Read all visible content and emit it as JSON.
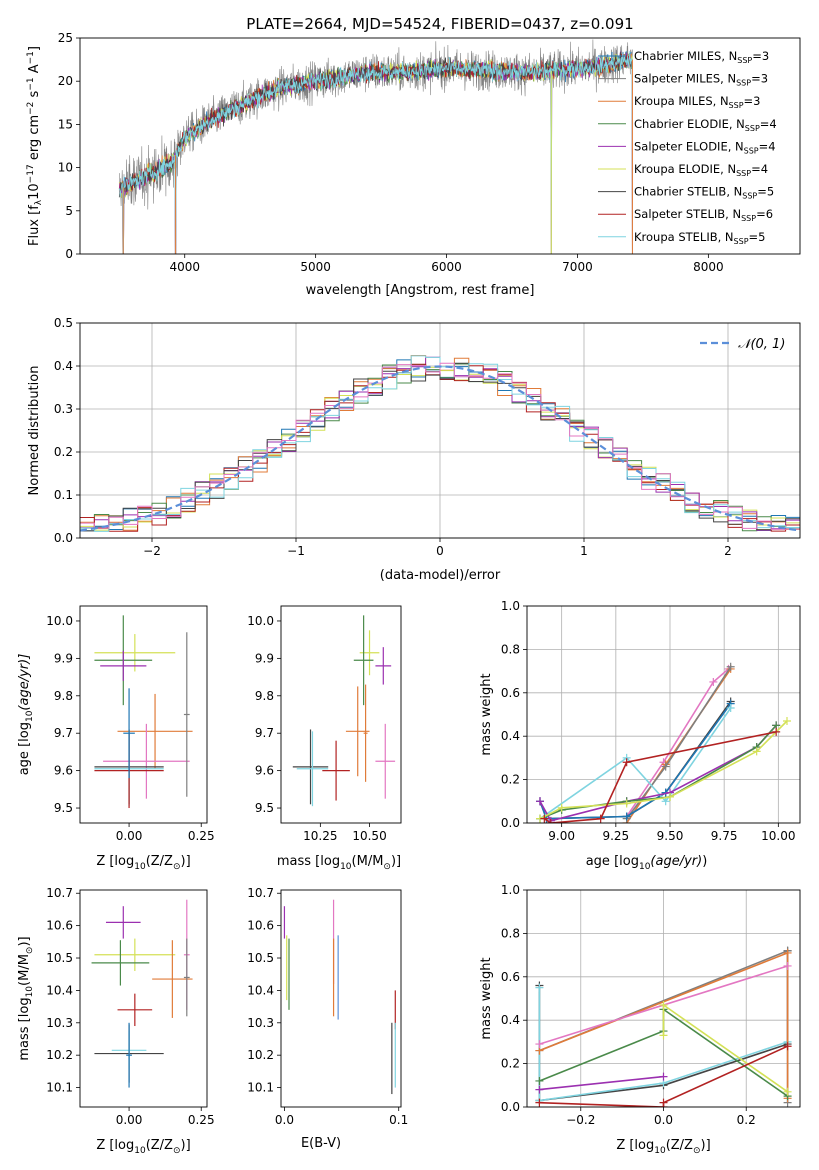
{
  "figure": {
    "title": "PLATE=2664, MJD=54524, FIBERID=0437, z=0.091"
  },
  "colors": {
    "Chabrier MILES": "#1f77b4",
    "Salpeter MILES": "#7f7f7f",
    "Kroupa MILES": "#e07b39",
    "Chabrier ELODIE": "#4a8a4a",
    "Salpeter ELODIE": "#9b30b0",
    "Kroupa ELODIE": "#d4e157",
    "Chabrier STELIB": "#444444",
    "Salpeter STELIB": "#b22222",
    "Kroupa STELIB": "#7fd4e0",
    "extra": "#e377c2",
    "gauss": "#5b8fd9"
  },
  "legend_spectrum": [
    {
      "model": "Chabrier MILES",
      "nssp": "3",
      "label": "Chabrier MILES, N"
    },
    {
      "model": "Salpeter MILES",
      "nssp": "3",
      "label": "Salpeter MILES, N"
    },
    {
      "model": "Kroupa MILES",
      "nssp": "3",
      "label": "Kroupa MILES, N"
    },
    {
      "model": "Chabrier ELODIE",
      "nssp": "4",
      "label": "Chabrier ELODIE, N"
    },
    {
      "model": "Salpeter ELODIE",
      "nssp": "4",
      "label": "Salpeter ELODIE, N"
    },
    {
      "model": "Kroupa ELODIE",
      "nssp": "4",
      "label": "Kroupa ELODIE, N"
    },
    {
      "model": "Chabrier STELIB",
      "nssp": "5",
      "label": "Chabrier STELIB, N"
    },
    {
      "model": "Salpeter STELIB",
      "nssp": "6",
      "label": "Salpeter STELIB, N"
    },
    {
      "model": "Kroupa STELIB",
      "nssp": "5",
      "label": "Kroupa STELIB, N"
    }
  ],
  "legend_subscript": "SSP",
  "chart_data": [
    {
      "id": "spectrum",
      "type": "line",
      "title": "PLATE=2664, MJD=54524, FIBERID=0437, z=0.091",
      "xlabel": "wavelength [Angstrom, rest frame]",
      "ylabel": "Flux [f",
      "xlim": [
        3200,
        8700
      ],
      "ylim": [
        0,
        25
      ],
      "xticks": [
        4000,
        5000,
        6000,
        7000,
        8000
      ],
      "yticks": [
        0,
        5,
        10,
        15,
        20,
        25
      ],
      "grid": false,
      "legend": "right",
      "data_envelope": {
        "x": [
          3500,
          3700,
          3900,
          4000,
          4200,
          4400,
          4600,
          4800,
          5000,
          5200,
          5400,
          5600,
          5800,
          6000,
          6200,
          6400,
          6600,
          6800,
          7000,
          7200,
          7400
        ],
        "y": [
          7.5,
          9.0,
          10.5,
          13.5,
          15.5,
          17.0,
          18.5,
          19.5,
          20.0,
          20.5,
          21.0,
          21.0,
          21.2,
          21.5,
          21.3,
          21.2,
          21.0,
          21.2,
          21.5,
          21.8,
          22.5
        ]
      },
      "dips": [
        3530,
        3930,
        6800,
        7420
      ]
    },
    {
      "id": "residuals",
      "type": "histogram",
      "xlabel": "(data-model)/error",
      "ylabel": "Normed distribution",
      "xlim": [
        -2.5,
        2.5
      ],
      "ylim": [
        0,
        0.5
      ],
      "xticks": [
        -2,
        -1,
        0,
        1,
        2
      ],
      "yticks": [
        0,
        0.1,
        0.2,
        0.3,
        0.4,
        0.5
      ],
      "grid": true,
      "legend": "top-right",
      "gauss_label": "𝒩(0, 1)",
      "bin_width": 0.1
    },
    {
      "id": "age_vs_Z",
      "type": "errorbar",
      "xlabel": "Z [log",
      "ylabel": "age  [log",
      "xlim": [
        -0.17,
        0.27
      ],
      "ylim": [
        9.46,
        10.04
      ],
      "xticks": [
        0.0,
        0.25
      ],
      "yticks": [
        9.5,
        9.6,
        9.7,
        9.8,
        9.9,
        10.0
      ],
      "points": [
        {
          "c": "Kroupa ELODIE",
          "x": 0.02,
          "y": 9.915,
          "xe": 0.14,
          "ye": 0.05
        },
        {
          "c": "Chabrier ELODIE",
          "x": -0.02,
          "y": 9.895,
          "xe": 0.1,
          "ye": 0.12
        },
        {
          "c": "Salpeter ELODIE",
          "x": -0.02,
          "y": 9.88,
          "xe": 0.08,
          "ye": 0.04
        },
        {
          "c": "Kroupa MILES",
          "x": 0.09,
          "y": 9.705,
          "xe": 0.13,
          "ye": 0.1
        },
        {
          "c": "extra",
          "x": 0.06,
          "y": 9.625,
          "xe": 0.15,
          "ye": 0.1
        },
        {
          "c": "Chabrier STELIB",
          "x": 0.0,
          "y": 9.61,
          "xe": 0.12,
          "ye": 0.1
        },
        {
          "c": "Kroupa STELIB",
          "x": 0.0,
          "y": 9.605,
          "xe": 0.12,
          "ye": 0.1
        },
        {
          "c": "Salpeter STELIB",
          "x": 0.0,
          "y": 9.6,
          "xe": 0.12,
          "ye": 0.1
        },
        {
          "c": "Chabrier MILES",
          "x": 0.0,
          "y": 9.7,
          "xe": 0.02,
          "ye": 0.12
        },
        {
          "c": "Salpeter MILES",
          "x": 0.2,
          "y": 9.75,
          "xe": 0.01,
          "ye": 0.22
        }
      ]
    },
    {
      "id": "age_vs_mass",
      "type": "errorbar",
      "xlabel": "mass [log",
      "ylabel": "",
      "xlim": [
        10.05,
        10.66
      ],
      "ylim": [
        9.46,
        10.04
      ],
      "xticks": [
        10.25,
        10.5
      ],
      "yticks": [
        9.5,
        9.6,
        9.7,
        9.8,
        9.9,
        10.0
      ],
      "points": [
        {
          "c": "Kroupa ELODIE",
          "x": 10.5,
          "y": 9.915,
          "xe": 0.05,
          "ye": 0.06
        },
        {
          "c": "Chabrier ELODIE",
          "x": 10.47,
          "y": 9.895,
          "xe": 0.05,
          "ye": 0.12
        },
        {
          "c": "Salpeter ELODIE",
          "x": 10.57,
          "y": 9.88,
          "xe": 0.04,
          "ye": 0.05
        },
        {
          "c": "Kroupa MILES",
          "x": 10.44,
          "y": 9.705,
          "xe": 0.06,
          "ye": 0.12
        },
        {
          "c": "extra",
          "x": 10.58,
          "y": 9.625,
          "xe": 0.05,
          "ye": 0.1
        },
        {
          "c": "Chabrier STELIB",
          "x": 10.2,
          "y": 9.61,
          "xe": 0.09,
          "ye": 0.1
        },
        {
          "c": "Kroupa STELIB",
          "x": 10.21,
          "y": 9.605,
          "xe": 0.08,
          "ye": 0.1
        },
        {
          "c": "Salpeter STELIB",
          "x": 10.33,
          "y": 9.6,
          "xe": 0.07,
          "ye": 0.08
        },
        {
          "c": "Kroupa MILES",
          "x": 10.48,
          "y": 9.7,
          "xe": 0.01,
          "ye": 0.13
        }
      ]
    },
    {
      "id": "mw_vs_age",
      "type": "line",
      "xlabel": "age  [log",
      "ylabel": "mass weight",
      "xlim": [
        8.84,
        10.1
      ],
      "ylim": [
        0,
        1.0
      ],
      "xticks": [
        9.0,
        9.25,
        9.5,
        9.75,
        10.0
      ],
      "yticks": [
        0.0,
        0.2,
        0.4,
        0.6,
        0.8,
        1.0
      ],
      "grid": true,
      "series": [
        {
          "c": "extra",
          "x": [
            9.3,
            9.47,
            9.7,
            9.77
          ],
          "y": [
            0.03,
            0.28,
            0.65,
            0.71
          ]
        },
        {
          "c": "Kroupa MILES",
          "x": [
            9.3,
            9.48,
            9.78
          ],
          "y": [
            0.0,
            0.27,
            0.71
          ]
        },
        {
          "c": "Salpeter MILES",
          "x": [
            9.3,
            9.48,
            9.78
          ],
          "y": [
            0.02,
            0.26,
            0.72
          ]
        },
        {
          "c": "Chabrier STELIB",
          "x": [
            8.9,
            8.93,
            9.3,
            9.48,
            9.78
          ],
          "y": [
            0.1,
            0.02,
            0.03,
            0.14,
            0.56
          ]
        },
        {
          "c": "Chabrier MILES",
          "x": [
            8.9,
            8.93,
            9.3,
            9.48,
            9.78
          ],
          "y": [
            0.1,
            0.02,
            0.03,
            0.14,
            0.55
          ]
        },
        {
          "c": "Kroupa STELIB",
          "x": [
            8.9,
            9.3,
            9.48,
            9.78
          ],
          "y": [
            0.02,
            0.3,
            0.1,
            0.53
          ]
        },
        {
          "c": "Salpeter ELODIE",
          "x": [
            8.9,
            8.95,
            9.3,
            9.5,
            9.9,
            9.99
          ],
          "y": [
            0.1,
            0.01,
            0.1,
            0.14,
            0.35,
            0.45
          ]
        },
        {
          "c": "Chabrier ELODIE",
          "x": [
            8.9,
            9.0,
            9.3,
            9.5,
            9.9,
            9.99
          ],
          "y": [
            0.02,
            0.06,
            0.1,
            0.12,
            0.35,
            0.45
          ]
        },
        {
          "c": "Kroupa ELODIE",
          "x": [
            8.9,
            9.0,
            9.3,
            9.5,
            9.9,
            10.04
          ],
          "y": [
            0.02,
            0.07,
            0.09,
            0.12,
            0.33,
            0.47
          ]
        },
        {
          "c": "Salpeter STELIB",
          "x": [
            8.92,
            8.95,
            9.18,
            9.3,
            9.99
          ],
          "y": [
            0.02,
            0.0,
            0.02,
            0.28,
            0.42
          ]
        }
      ]
    },
    {
      "id": "mass_vs_Z",
      "type": "errorbar",
      "xlabel": "Z [log",
      "ylabel": "mass [log",
      "xlim": [
        -0.17,
        0.27
      ],
      "ylim": [
        10.04,
        10.71
      ],
      "xticks": [
        0.0,
        0.25
      ],
      "yticks": [
        10.1,
        10.2,
        10.3,
        10.4,
        10.5,
        10.6,
        10.7
      ],
      "points": [
        {
          "c": "Salpeter ELODIE",
          "x": -0.02,
          "y": 10.61,
          "xe": 0.06,
          "ye": 0.05
        },
        {
          "c": "Kroupa ELODIE",
          "x": 0.02,
          "y": 10.51,
          "xe": 0.14,
          "ye": 0.05
        },
        {
          "c": "Chabrier ELODIE",
          "x": -0.03,
          "y": 10.485,
          "xe": 0.1,
          "ye": 0.07
        },
        {
          "c": "extra",
          "x": 0.2,
          "y": 10.51,
          "xe": 0.01,
          "ye": 0.17
        },
        {
          "c": "Kroupa MILES",
          "x": 0.15,
          "y": 10.435,
          "xe": 0.07,
          "ye": 0.12
        },
        {
          "c": "Salpeter STELIB",
          "x": 0.02,
          "y": 10.34,
          "xe": 0.06,
          "ye": 0.05
        },
        {
          "c": "Chabrier STELIB",
          "x": 0.0,
          "y": 10.205,
          "xe": 0.12,
          "ye": 0.09
        },
        {
          "c": "Kroupa STELIB",
          "x": 0.0,
          "y": 10.215,
          "xe": 0.06,
          "ye": 0.06
        },
        {
          "c": "Chabrier MILES",
          "x": 0.0,
          "y": 10.2,
          "xe": 0.01,
          "ye": 0.1
        },
        {
          "c": "Salpeter MILES",
          "x": 0.2,
          "y": 10.44,
          "xe": 0.01,
          "ye": 0.12
        }
      ]
    },
    {
      "id": "mass_vs_ebv",
      "type": "errorbar",
      "xlabel": "E(B-V)",
      "ylabel": "",
      "xlim": [
        -0.003,
        0.102
      ],
      "ylim": [
        10.04,
        10.71
      ],
      "xticks": [
        0.0,
        0.1
      ],
      "yticks": [
        10.1,
        10.2,
        10.3,
        10.4,
        10.5,
        10.6,
        10.7
      ],
      "points": [
        {
          "c": "Salpeter ELODIE",
          "x": 0.0,
          "y": 10.61,
          "xe": 0,
          "ye": 0.05
        },
        {
          "c": "Kroupa ELODIE",
          "x": 0.002,
          "y": 10.47,
          "xe": 0,
          "ye": 0.1
        },
        {
          "c": "Chabrier ELODIE",
          "x": 0.004,
          "y": 10.45,
          "xe": 0,
          "ye": 0.11
        },
        {
          "c": "extra",
          "x": 0.043,
          "y": 10.55,
          "xe": 0,
          "ye": 0.13
        },
        {
          "c": "Kroupa MILES",
          "x": 0.043,
          "y": 10.44,
          "xe": 0,
          "ye": 0.12
        },
        {
          "c": "gauss",
          "x": 0.047,
          "y": 10.44,
          "xe": 0,
          "ye": 0.13
        },
        {
          "c": "Salpeter STELIB",
          "x": 0.097,
          "y": 10.34,
          "xe": 0,
          "ye": 0.06
        },
        {
          "c": "Chabrier STELIB",
          "x": 0.094,
          "y": 10.19,
          "xe": 0,
          "ye": 0.11
        },
        {
          "c": "Kroupa STELIB",
          "x": 0.097,
          "y": 10.2,
          "xe": 0,
          "ye": 0.1
        }
      ]
    },
    {
      "id": "mw_vs_Z",
      "type": "line",
      "xlabel": "Z [log",
      "ylabel": "mass weight",
      "xlim": [
        -0.33,
        0.33
      ],
      "ylim": [
        0,
        1.0
      ],
      "xticks": [
        -0.2,
        0.0,
        0.2
      ],
      "yticks": [
        0.0,
        0.2,
        0.4,
        0.6,
        0.8,
        1.0
      ],
      "grid": true,
      "series": [
        {
          "c": "Chabrier STELIB",
          "x": [
            -0.3,
            -0.3,
            0.0,
            0.3,
            0.3
          ],
          "y": [
            0.56,
            0.03,
            0.1,
            0.29,
            0.72
          ]
        },
        {
          "c": "Kroupa STELIB",
          "x": [
            -0.3,
            -0.3,
            0.0,
            0.3
          ],
          "y": [
            0.55,
            0.03,
            0.11,
            0.3
          ]
        },
        {
          "c": "Salpeter MILES",
          "x": [
            -0.3,
            0.3,
            0.3
          ],
          "y": [
            0.26,
            0.72,
            0.02
          ]
        },
        {
          "c": "Kroupa MILES",
          "x": [
            -0.3,
            0.3,
            0.3
          ],
          "y": [
            0.26,
            0.71,
            0.04
          ]
        },
        {
          "c": "extra",
          "x": [
            -0.3,
            0.3
          ],
          "y": [
            0.29,
            0.65
          ]
        },
        {
          "c": "Chabrier ELODIE",
          "x": [
            -0.3,
            0.0,
            0.0,
            0.3
          ],
          "y": [
            0.12,
            0.35,
            0.45,
            0.05
          ]
        },
        {
          "c": "Kroupa ELODIE",
          "x": [
            0.0,
            0.0,
            0.3
          ],
          "y": [
            0.33,
            0.47,
            0.07
          ]
        },
        {
          "c": "Salpeter ELODIE",
          "x": [
            -0.3,
            0.0
          ],
          "y": [
            0.08,
            0.14
          ]
        },
        {
          "c": "Salpeter STELIB",
          "x": [
            -0.3,
            0.0,
            0.0,
            0.3
          ],
          "y": [
            0.02,
            0.0,
            0.02,
            0.28
          ]
        }
      ]
    }
  ]
}
